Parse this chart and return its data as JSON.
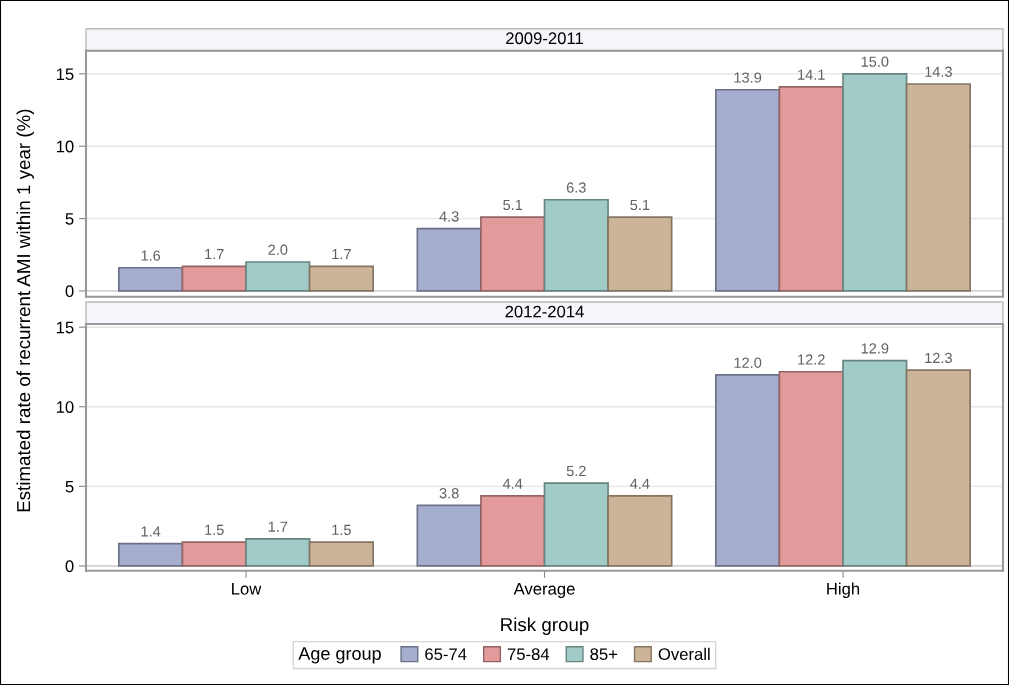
{
  "chart_data": [
    {
      "type": "bar",
      "title": "2009-2011",
      "ylabel": "Estimated rate of recurrent AMI within 1 year (%)",
      "legend_title": "Age group",
      "legend": "bottom",
      "categories": [
        null,
        null,
        null
      ],
      "ylim": [
        -0.4,
        16.6
      ],
      "yticks": [
        0,
        5,
        10,
        15
      ],
      "grid": "y",
      "tick_labels": "y",
      "series": [
        {
          "name": "65-74",
          "color": "#a6aed0",
          "values": [
            1.6,
            4.3,
            13.9
          ],
          "value_labels": [
            "1.6",
            "4.3",
            "13.9"
          ]
        },
        {
          "name": "75-84",
          "color": "#e39a9b",
          "values": [
            1.7,
            5.1,
            14.1
          ],
          "value_labels": [
            "1.7",
            "5.1",
            "14.1"
          ]
        },
        {
          "name": "85+",
          "color": "#a0cbc6",
          "values": [
            2.0,
            6.3,
            15.0
          ],
          "value_labels": [
            "2.0",
            "6.3",
            "15.0"
          ]
        },
        {
          "name": "Overall",
          "color": "#cbb497",
          "values": [
            1.7,
            5.1,
            14.3
          ],
          "value_labels": [
            "1.7",
            "5.1",
            "14.3"
          ]
        }
      ]
    },
    {
      "type": "bar",
      "title": "2012-2014",
      "xlabel": "Risk group",
      "categories": [
        "Low",
        "Average",
        "High"
      ],
      "ylim": [
        -0.3,
        15.2
      ],
      "yticks": [
        0,
        5,
        10,
        15
      ],
      "grid": "y",
      "series": [
        {
          "color": "#a6aed0",
          "values": [
            1.4,
            3.8,
            12.0
          ],
          "value_labels": [
            "1.4",
            "3.8",
            "12.0"
          ]
        },
        {
          "color": "#e39a9b",
          "values": [
            1.5,
            4.4,
            12.2
          ],
          "value_labels": [
            "1.5",
            "4.4",
            "12.2"
          ]
        },
        {
          "color": "#a0cbc6",
          "values": [
            1.7,
            5.2,
            12.9
          ],
          "value_labels": [
            "1.7",
            "5.2",
            "12.9"
          ]
        },
        {
          "color": "#cbb497",
          "values": [
            1.5,
            4.4,
            12.3
          ],
          "value_labels": [
            "1.5",
            "4.4",
            "12.3"
          ]
        }
      ]
    }
  ]
}
